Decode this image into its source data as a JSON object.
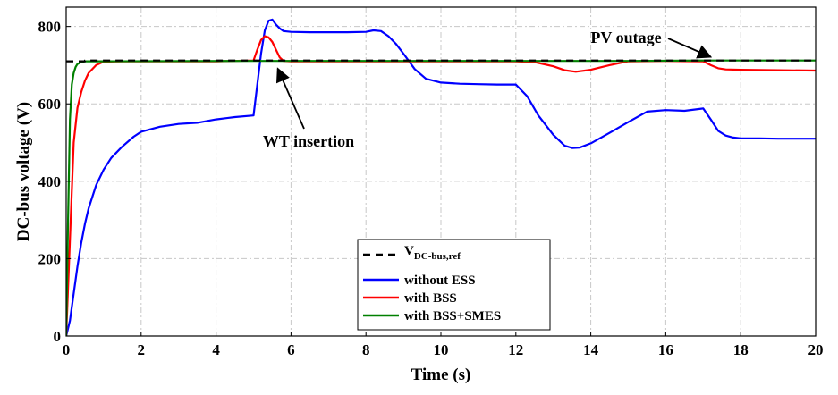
{
  "chart_data": {
    "type": "line",
    "xlabel": "Time (s)",
    "ylabel": "DC-bus voltage (V)",
    "xlim": [
      0,
      20
    ],
    "ylim": [
      0,
      850
    ],
    "xticks": [
      0,
      2,
      4,
      6,
      8,
      10,
      12,
      14,
      16,
      18,
      20
    ],
    "yticks": [
      0,
      200,
      400,
      600,
      800
    ],
    "grid": true,
    "legend_position": "bottom-center",
    "legend_ref_prefix": "V",
    "legend_ref_sub": "DC-bus,ref",
    "series": [
      {
        "name": "V_DC-bus,ref",
        "color": "#000000",
        "style": "dashed",
        "x": [
          0,
          0.5,
          0.5,
          20
        ],
        "y": [
          710,
          710,
          712,
          712
        ]
      },
      {
        "name": "without ESS",
        "color": "#0000ff",
        "style": "solid",
        "x": [
          0,
          0.1,
          0.2,
          0.3,
          0.4,
          0.5,
          0.6,
          0.8,
          1.0,
          1.2,
          1.5,
          1.8,
          2.0,
          2.5,
          3.0,
          3.5,
          4.0,
          4.5,
          5.0,
          5.1,
          5.2,
          5.3,
          5.4,
          5.5,
          5.6,
          5.7,
          5.8,
          6.0,
          6.5,
          7.0,
          7.5,
          8.0,
          8.2,
          8.4,
          8.6,
          8.8,
          9.0,
          9.3,
          9.6,
          10.0,
          10.5,
          11.0,
          11.5,
          12.0,
          12.3,
          12.6,
          13.0,
          13.3,
          13.5,
          13.7,
          14.0,
          14.5,
          15.0,
          15.5,
          16.0,
          16.5,
          17.0,
          17.2,
          17.4,
          17.6,
          17.8,
          18.0,
          18.5,
          19.0,
          19.5,
          20.0
        ],
        "y": [
          0,
          40,
          110,
          180,
          240,
          290,
          330,
          390,
          430,
          460,
          490,
          515,
          528,
          541,
          548,
          551,
          560,
          566,
          570,
          650,
          730,
          790,
          815,
          818,
          805,
          795,
          788,
          786,
          785,
          785,
          785,
          786,
          790,
          788,
          775,
          755,
          730,
          690,
          665,
          655,
          652,
          651,
          650,
          650,
          620,
          570,
          520,
          492,
          486,
          487,
          498,
          525,
          553,
          580,
          584,
          582,
          588,
          560,
          530,
          518,
          513,
          511,
          511,
          510,
          510,
          510
        ]
      },
      {
        "name": "with BSS",
        "color": "#ff0000",
        "style": "solid",
        "x": [
          0,
          0.1,
          0.2,
          0.3,
          0.4,
          0.5,
          0.6,
          0.8,
          1.0,
          1.5,
          2.0,
          4.0,
          5.0,
          5.1,
          5.2,
          5.3,
          5.4,
          5.5,
          5.6,
          5.7,
          5.8,
          6.0,
          8.0,
          10.0,
          12.0,
          12.5,
          13.0,
          13.3,
          13.6,
          14.0,
          14.5,
          15.0,
          16.0,
          17.0,
          17.2,
          17.4,
          17.6,
          18.0,
          19.0,
          20.0
        ],
        "y": [
          0,
          250,
          500,
          590,
          630,
          660,
          680,
          700,
          709,
          710,
          710,
          710,
          712,
          740,
          765,
          775,
          772,
          760,
          740,
          720,
          711,
          710,
          710,
          710,
          710,
          708,
          697,
          687,
          683,
          688,
          700,
          710,
          711,
          710,
          700,
          692,
          689,
          688,
          687,
          686
        ]
      },
      {
        "name": "with BSS+SMES",
        "color": "#008000",
        "style": "solid",
        "x": [
          0,
          0.05,
          0.1,
          0.15,
          0.2,
          0.25,
          0.3,
          0.4,
          0.5,
          0.6,
          1.0,
          5.0,
          10.0,
          15.0,
          17.0,
          20.0
        ],
        "y": [
          0,
          300,
          560,
          650,
          680,
          695,
          703,
          708,
          710,
          710,
          710,
          711,
          711,
          711,
          712,
          712
        ]
      }
    ],
    "annotations": [
      {
        "text": "WT insertion",
        "arrow_to": [
          5.55,
          705
        ]
      },
      {
        "text": "PV outage",
        "arrow_to": [
          17.2,
          712
        ]
      }
    ]
  }
}
